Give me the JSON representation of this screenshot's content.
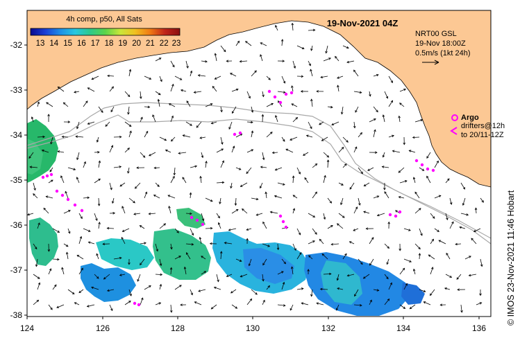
{
  "map": {
    "date_title": "19-Nov-2021 04Z",
    "composite_label": "4h comp, p50, All Sats",
    "colorbar_ticks": [
      "13",
      "14",
      "15",
      "16",
      "17",
      "18",
      "19",
      "20",
      "21",
      "22",
      "23"
    ],
    "colorbar_stops": [
      "#0b0b8f",
      "#1a3fd6",
      "#1e8fe6",
      "#28c8e0",
      "#2ec98a",
      "#5bd44a",
      "#c8e63a",
      "#f0c020",
      "#f07a14",
      "#c0251a",
      "#8a1010"
    ],
    "current_info": [
      "NRT00 GSL",
      "19-Nov 18:00Z",
      "0.5m/s (1kt 24h)"
    ],
    "legend": {
      "argo_label": "Argo",
      "drifters_line1": "drifters@12h",
      "drifters_line2": "to 20/11-12Z"
    },
    "credit": "© IMOS 23-Nov-2021 11:46 Hobart",
    "lat_labels": [
      "-32",
      "-33",
      "-34",
      "-35",
      "-36",
      "-37",
      "-38"
    ],
    "lon_labels": [
      "124",
      "126",
      "128",
      "130",
      "132",
      "134",
      "136"
    ],
    "colors": {
      "land": "#fcc894",
      "ocean": "#ffffff",
      "isobath": "#a8a8a8",
      "drifter": "#ff00ff",
      "arrow": "#000000"
    }
  }
}
